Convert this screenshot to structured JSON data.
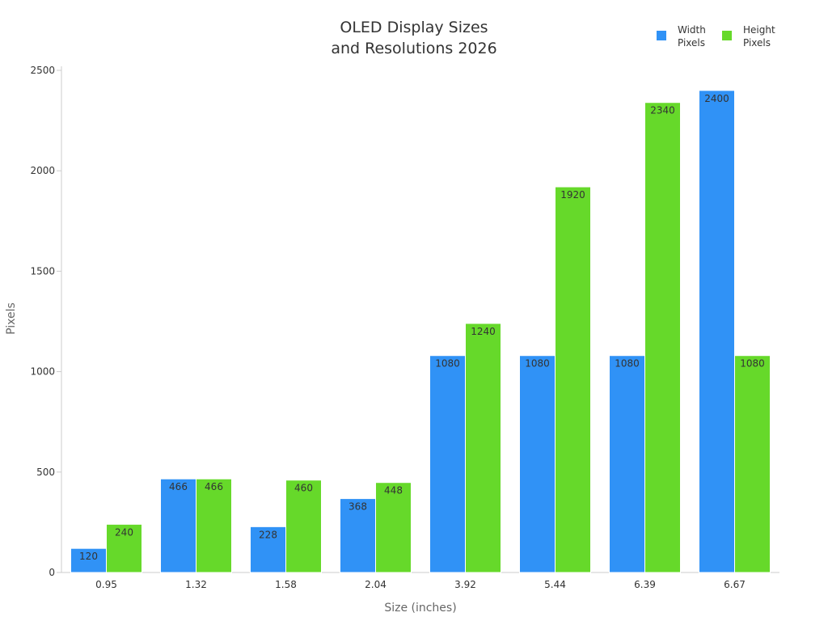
{
  "chart_data": {
    "type": "bar",
    "title": [
      "OLED Display Sizes",
      "and Resolutions 2026"
    ],
    "xlabel": "Size (inches)",
    "ylabel": "Pixels",
    "categories": [
      "0.95",
      "1.32",
      "1.58",
      "2.04",
      "3.92",
      "5.44",
      "6.39",
      "6.67"
    ],
    "series": [
      {
        "name": [
          "Width",
          "Pixels"
        ],
        "color": "#3092f6",
        "values": [
          120,
          466,
          228,
          368,
          1080,
          1080,
          1080,
          2400
        ]
      },
      {
        "name": [
          "Height",
          "Pixels"
        ],
        "color": "#66d92a",
        "values": [
          240,
          466,
          460,
          448,
          1240,
          1920,
          2340,
          1080
        ]
      }
    ],
    "ylim": [
      0,
      2500
    ],
    "yticks": [
      0,
      500,
      1000,
      1500,
      2000,
      2500
    ],
    "grid": false,
    "legend_position": "top-right"
  }
}
